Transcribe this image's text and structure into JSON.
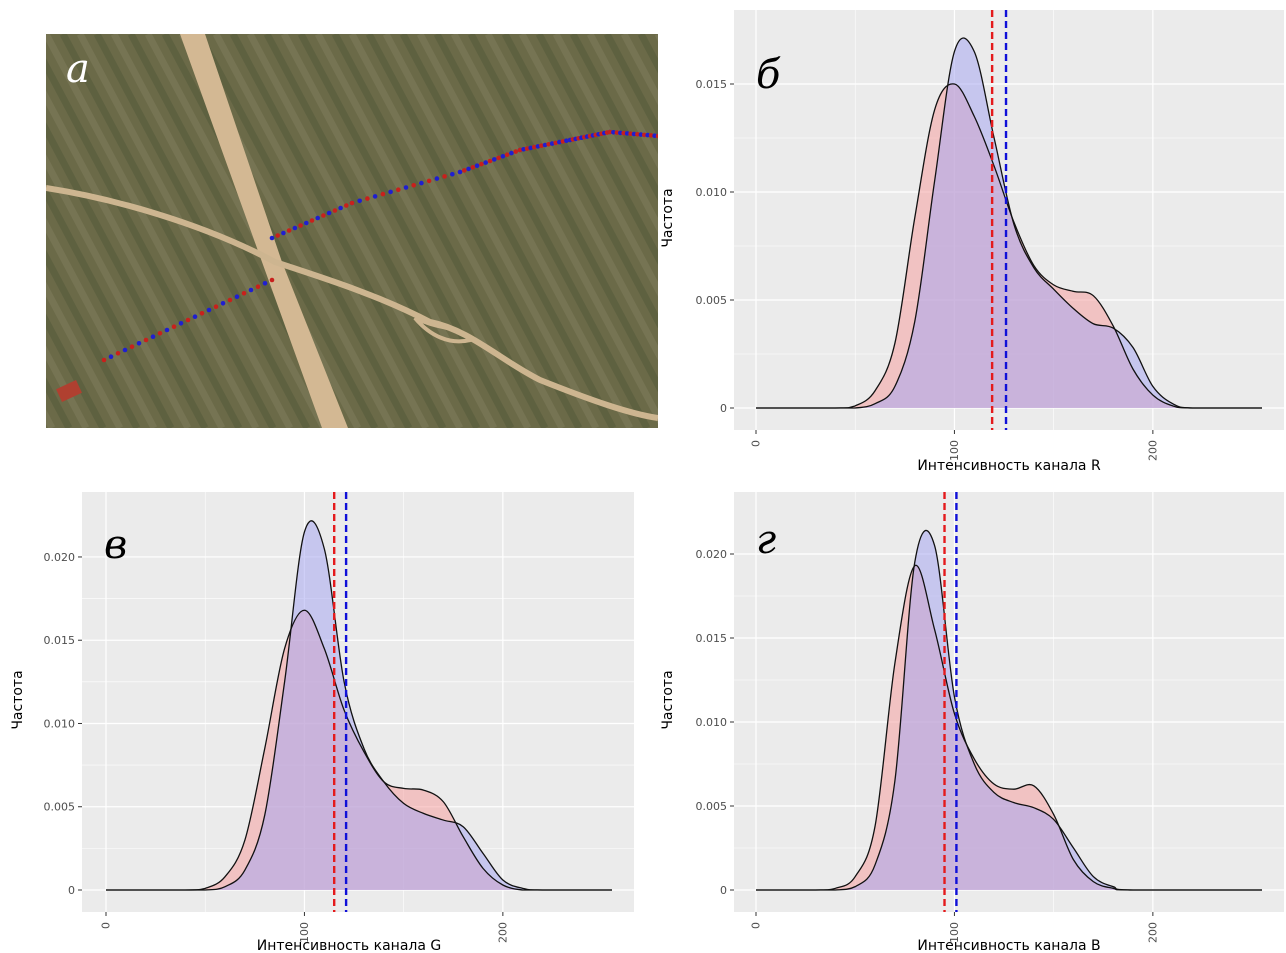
{
  "figure": {
    "photo_label": "а",
    "colors": {
      "series_a": "#e41a1c",
      "series_b": "#1010d8",
      "fill_a": "#f5a0a0",
      "fill_b": "#a8a8f0",
      "panel_bg": "#ebebeb",
      "grid": "#ffffff"
    }
  },
  "chart_data": [
    {
      "type": "area",
      "panel_label": "б",
      "xlabel": "Интенсивность канала R",
      "ylabel": "Частота",
      "xlim": [
        0,
        255
      ],
      "ylim": [
        0,
        0.0175
      ],
      "xticks": [
        0,
        100,
        200
      ],
      "yticks": [
        0,
        0.005,
        0.01,
        0.015
      ],
      "ytick_labels": [
        "0",
        "0.005",
        "0.010",
        "0.015"
      ],
      "grid": true,
      "x": [
        0,
        40,
        50,
        60,
        70,
        80,
        90,
        100,
        110,
        120,
        130,
        140,
        150,
        160,
        170,
        180,
        190,
        200,
        210,
        220,
        255
      ],
      "series": [
        {
          "values": [
            0,
            0,
            0.0001,
            0.0008,
            0.003,
            0.0088,
            0.0138,
            0.015,
            0.0135,
            0.0112,
            0.0086,
            0.0066,
            0.0057,
            0.0054,
            0.0052,
            0.0038,
            0.0018,
            0.0006,
            0.0001,
            0,
            0
          ]
        },
        {
          "values": [
            0,
            0,
            0,
            0.0002,
            0.001,
            0.004,
            0.0105,
            0.0165,
            0.0165,
            0.0125,
            0.0085,
            0.0065,
            0.0055,
            0.0046,
            0.0039,
            0.0037,
            0.0028,
            0.001,
            0.0002,
            0,
            0
          ]
        }
      ],
      "vlines": [
        119,
        126
      ]
    },
    {
      "type": "area",
      "panel_label": "в",
      "xlabel": "Интенсивность канала G",
      "ylabel": "Частота",
      "xlim": [
        0,
        255
      ],
      "ylim": [
        0,
        0.0227
      ],
      "xticks": [
        0,
        100,
        200
      ],
      "yticks": [
        0,
        0.005,
        0.01,
        0.015,
        0.02
      ],
      "ytick_labels": [
        "0",
        "0.005",
        "0.010",
        "0.015",
        "0.020"
      ],
      "grid": true,
      "x": [
        0,
        40,
        50,
        60,
        70,
        80,
        90,
        100,
        110,
        120,
        130,
        140,
        150,
        160,
        170,
        180,
        190,
        200,
        210,
        220,
        255
      ],
      "series": [
        {
          "values": [
            0,
            0,
            0.0001,
            0.0008,
            0.003,
            0.0085,
            0.0145,
            0.0168,
            0.0145,
            0.0108,
            0.0083,
            0.0065,
            0.0061,
            0.006,
            0.0053,
            0.0032,
            0.0013,
            0.0003,
            0,
            0,
            0
          ]
        },
        {
          "values": [
            0,
            0,
            0,
            0.0002,
            0.0012,
            0.0045,
            0.0125,
            0.0215,
            0.0205,
            0.0125,
            0.0085,
            0.0065,
            0.0052,
            0.0046,
            0.0042,
            0.0038,
            0.0022,
            0.0006,
            0.0001,
            0,
            0
          ]
        }
      ],
      "vlines": [
        115,
        121
      ]
    },
    {
      "type": "area",
      "panel_label": "г",
      "xlabel": "Интенсивность канала B",
      "ylabel": "Частота",
      "xlim": [
        0,
        255
      ],
      "ylim": [
        0,
        0.0225
      ],
      "xticks": [
        0,
        100,
        200
      ],
      "yticks": [
        0,
        0.005,
        0.01,
        0.015,
        0.02
      ],
      "ytick_labels": [
        "0",
        "0.005",
        "0.010",
        "0.015",
        "0.020"
      ],
      "grid": true,
      "x": [
        0,
        30,
        40,
        50,
        60,
        70,
        80,
        90,
        100,
        110,
        120,
        130,
        140,
        150,
        160,
        170,
        180,
        190,
        255
      ],
      "series": [
        {
          "values": [
            0,
            0,
            0.0001,
            0.0008,
            0.0038,
            0.0135,
            0.0193,
            0.0155,
            0.0105,
            0.0078,
            0.0063,
            0.006,
            0.0062,
            0.0045,
            0.0018,
            0.0005,
            0.0001,
            0,
            0
          ]
        },
        {
          "values": [
            0,
            0,
            0,
            0.0002,
            0.0015,
            0.0065,
            0.0195,
            0.0205,
            0.0115,
            0.0075,
            0.0058,
            0.0052,
            0.0049,
            0.0042,
            0.0025,
            0.0008,
            0.0002,
            0,
            0
          ]
        }
      ],
      "vlines": [
        95,
        101
      ]
    }
  ]
}
